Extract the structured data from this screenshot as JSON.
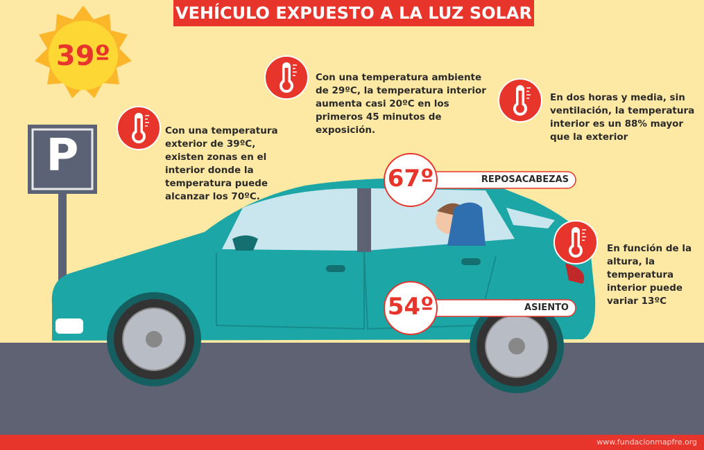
{
  "header": {
    "title": "VEHÍCULO EXPUESTO A LA LUZ SOLAR"
  },
  "sun": {
    "label": "39º"
  },
  "parking_sign": {
    "label": "P"
  },
  "notes": [
    {
      "lines": [
        "Con una temperatura",
        "exterior de 39ºC,",
        "existen zonas en el",
        "interior donde la",
        "temperatura puede",
        "alcanzar los 70ºC."
      ]
    },
    {
      "lines": [
        "Con una temperatura ambiente",
        "de 29ºC, la temperatura interior",
        "aumenta casi 20ºC en los",
        "primeros 45 minutos de",
        "exposición."
      ]
    },
    {
      "lines": [
        "En dos horas y media, sin",
        "ventilación, la temperatura",
        "interior es un 88% mayor",
        "que la exterior"
      ]
    },
    {
      "lines": [
        "En función de la",
        "altura, la",
        "temperatura",
        "interior puede",
        "variar 13ºC"
      ]
    }
  ],
  "badges": [
    {
      "value": "67º",
      "label": "REPOSACABEZAS"
    },
    {
      "value": "54º",
      "label": "ASIENTO"
    }
  ],
  "footer": {
    "url": "www.fundacionmapfre.org"
  }
}
